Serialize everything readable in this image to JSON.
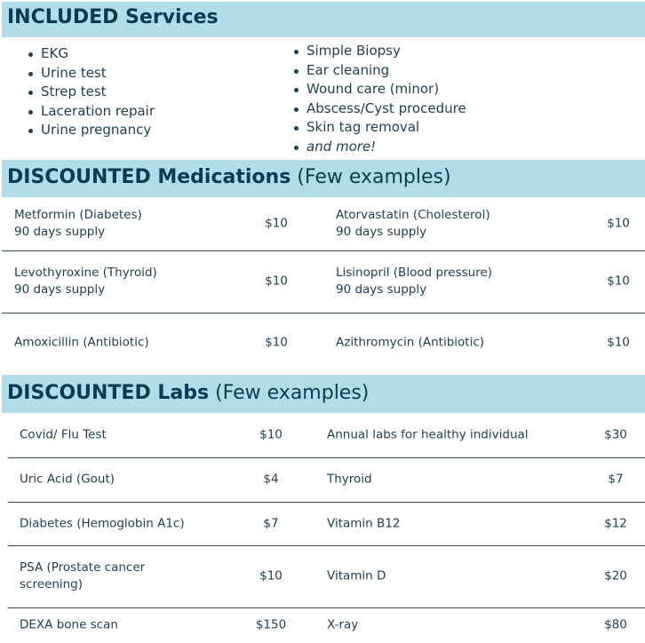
{
  "included": {
    "title": "INCLUDED Services",
    "left_items": [
      "EKG",
      "Urine test",
      "Strep test",
      "Laceration repair",
      "Urine pregnancy"
    ],
    "right_items": [
      "Simple Biopsy",
      "Ear cleaning",
      "Wound care (minor)",
      "Abscess/Cyst procedure",
      "Skin tag removal",
      "and more!"
    ]
  },
  "medications": {
    "title": "DISCOUNTED Medications",
    "subtitle": "(Few examples)",
    "rows": [
      {
        "left_name": "Metformin (Diabetes)",
        "left_note": "90 days supply",
        "left_price": "$10",
        "right_name": "Atorvastatin (Cholesterol)",
        "right_note": "90 days supply",
        "right_price": "$10"
      },
      {
        "left_name": "Levothyroxine (Thyroid)",
        "left_note": "90 days supply",
        "left_price": "$10",
        "right_name": "Lisinopril (Blood pressure)",
        "right_note": "90 days supply",
        "right_price": "$10"
      },
      {
        "left_name": "Amoxicillin (Antibiotic)",
        "left_note": "",
        "left_price": "$10",
        "right_name": "Azithromycin (Antibiotic)",
        "right_note": "",
        "right_price": "$10"
      }
    ]
  },
  "labs": {
    "title": "DISCOUNTED Labs",
    "subtitle": "(Few examples)",
    "rows": [
      {
        "left_name": "Covid/ Flu Test",
        "left_note": "",
        "left_price": "$10",
        "right_name": "Annual labs for healthy individual",
        "right_price": "$30"
      },
      {
        "left_name": "Uric Acid (Gout)",
        "left_note": "",
        "left_price": "$4",
        "right_name": "Thyroid",
        "right_price": "$7"
      },
      {
        "left_name": "Diabetes (Hemoglobin A1c)",
        "left_note": "",
        "left_price": "$7",
        "right_name": "Vitamin B12",
        "right_price": "$12"
      },
      {
        "left_name": "PSA (Prostate cancer",
        "left_note": "screening)",
        "left_price": "$10",
        "right_name": "Vitamin D",
        "right_price": "$20"
      },
      {
        "left_name": "DEXA bone scan",
        "left_note": "",
        "left_price": "$150",
        "right_name": "X-ray",
        "right_price": "$80"
      }
    ]
  },
  "colors": {
    "header_bg": "#b2dce8",
    "heading_text": "#0b3a53",
    "body_text": "#1d3d50"
  }
}
